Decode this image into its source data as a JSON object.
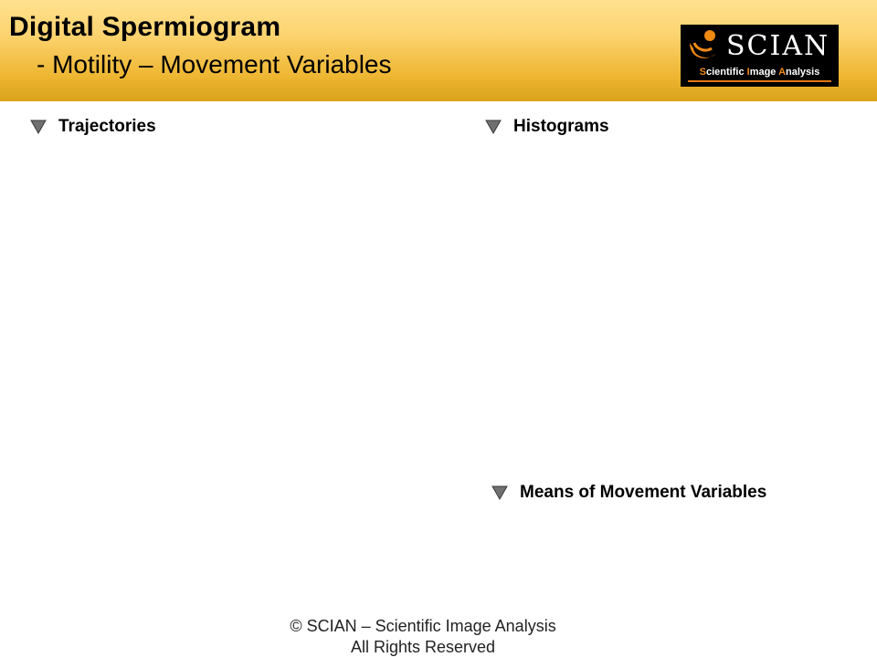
{
  "header": {
    "title": "Digital Spermiogram",
    "subtitle": "- Motility – Movement Variables",
    "logo": {
      "word": "SCIAN",
      "tagline_parts": [
        "S",
        "cientific ",
        "I",
        "mage ",
        "A",
        "nalysis"
      ],
      "accent_color": "#f08a13",
      "icon": "scian-logo-icon"
    }
  },
  "sections": {
    "trajectories": {
      "label": "Trajectories",
      "icon": "triangle-down-icon"
    },
    "histograms": {
      "label": "Histograms",
      "icon": "triangle-down-icon"
    },
    "means": {
      "label": "Means of Movement Variables",
      "icon": "triangle-down-icon"
    }
  },
  "footer": {
    "line1": "© SCIAN – Scientific Image Analysis",
    "line2": "All Rights Reserved"
  },
  "colors": {
    "header_top": "#ffe18f",
    "header_bottom": "#d9a21c",
    "triangle_fill": "#707070"
  }
}
